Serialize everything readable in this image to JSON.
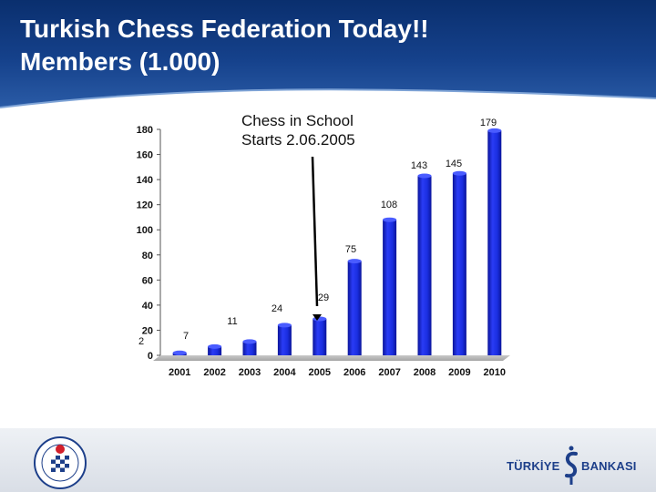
{
  "slide": {
    "title_line1": "Turkish Chess Federation Today!!",
    "title_line2": "Members (1.000)",
    "annotation_line1": "Chess in School",
    "annotation_line2": "Starts 2.06.2005"
  },
  "branding": {
    "bank_word1": "TÜRKİYE",
    "bank_word2": "BANKASI",
    "bank_icon": "is-bankasi-logo",
    "federation_icon": "chess-federation-seal"
  },
  "colors": {
    "header": "#15418b",
    "bar": "#1a2ee0",
    "bar_dark": "#0a149a",
    "text": "#111111"
  },
  "chart_data": {
    "type": "bar",
    "categories": [
      "2001",
      "2002",
      "2003",
      "2004",
      "2005",
      "2006",
      "2007",
      "2008",
      "2009",
      "2010"
    ],
    "values": [
      2,
      7,
      11,
      24,
      29,
      75,
      108,
      143,
      145,
      179
    ],
    "data_labels": [
      "2",
      "7",
      "11",
      "24",
      "29",
      "75",
      "108",
      "143",
      "145",
      "179"
    ],
    "ylim": [
      0,
      180
    ],
    "yticks": [
      "0",
      "20",
      "40",
      "60",
      "80",
      "100",
      "120",
      "140",
      "160",
      "180"
    ],
    "grid": false,
    "legend": "none",
    "annotation_arrow_target": "2005"
  }
}
